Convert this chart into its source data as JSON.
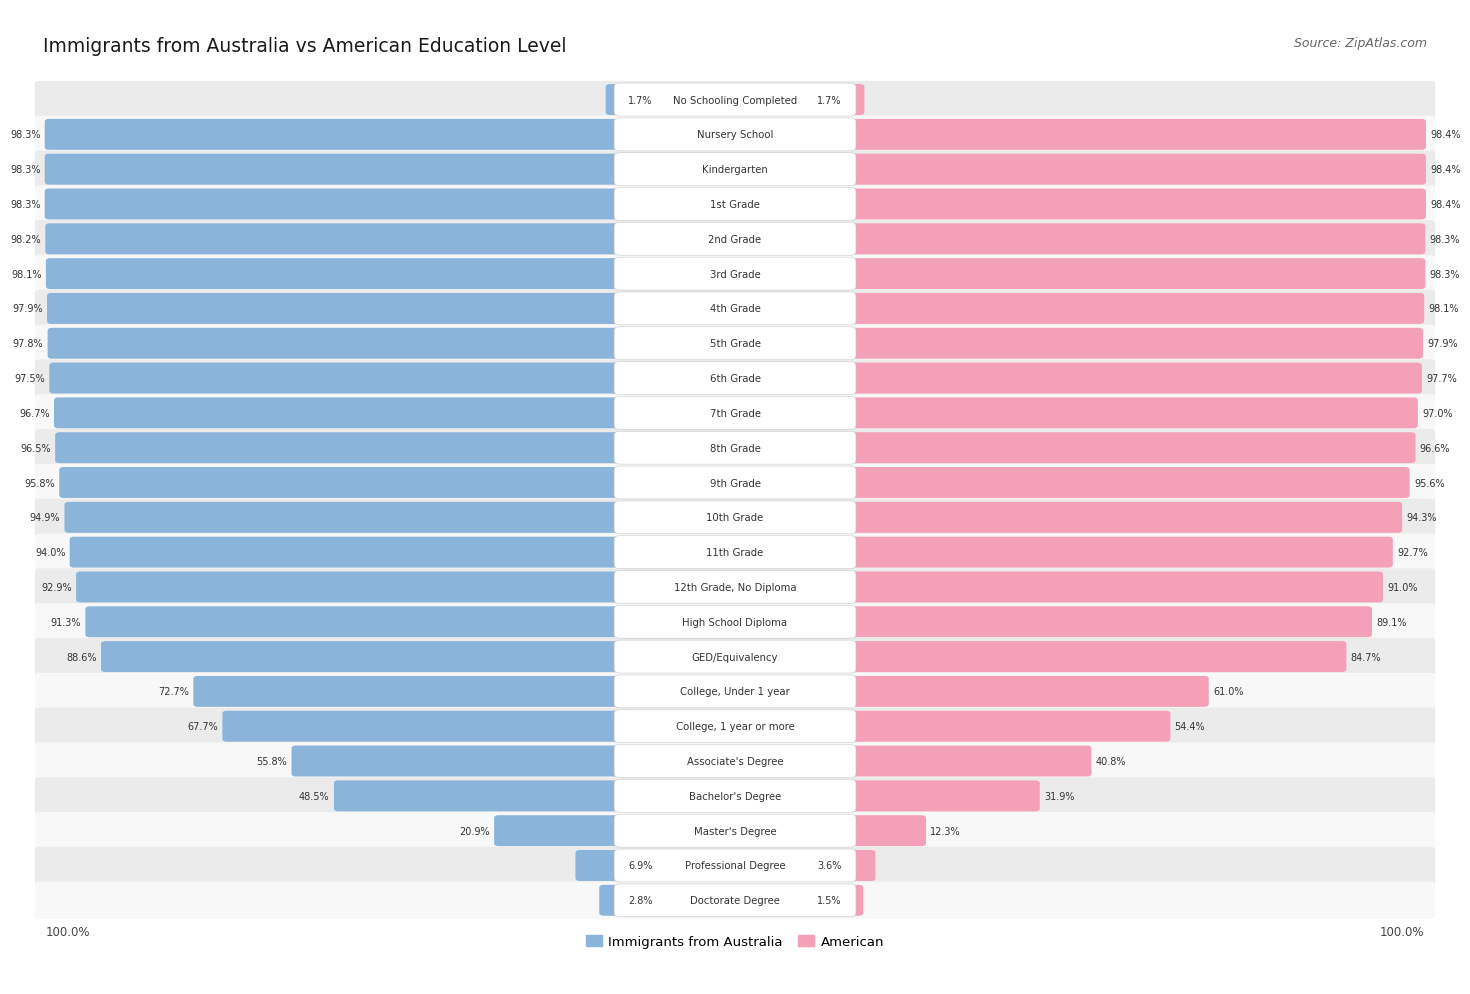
{
  "title": "Immigrants from Australia vs American Education Level",
  "source": "Source: ZipAtlas.com",
  "categories": [
    "No Schooling Completed",
    "Nursery School",
    "Kindergarten",
    "1st Grade",
    "2nd Grade",
    "3rd Grade",
    "4th Grade",
    "5th Grade",
    "6th Grade",
    "7th Grade",
    "8th Grade",
    "9th Grade",
    "10th Grade",
    "11th Grade",
    "12th Grade, No Diploma",
    "High School Diploma",
    "GED/Equivalency",
    "College, Under 1 year",
    "College, 1 year or more",
    "Associate's Degree",
    "Bachelor's Degree",
    "Master's Degree",
    "Professional Degree",
    "Doctorate Degree"
  ],
  "australia_values": [
    1.7,
    98.3,
    98.3,
    98.3,
    98.2,
    98.1,
    97.9,
    97.8,
    97.5,
    96.7,
    96.5,
    95.8,
    94.9,
    94.0,
    92.9,
    91.3,
    88.6,
    72.7,
    67.7,
    55.8,
    48.5,
    20.9,
    6.9,
    2.8
  ],
  "american_values": [
    1.7,
    98.4,
    98.4,
    98.4,
    98.3,
    98.3,
    98.1,
    97.9,
    97.7,
    97.0,
    96.6,
    95.6,
    94.3,
    92.7,
    91.0,
    89.1,
    84.7,
    61.0,
    54.4,
    40.8,
    31.9,
    12.3,
    3.6,
    1.5
  ],
  "australia_color": "#8ab4d9",
  "american_color": "#f4a0b8",
  "row_even_color": "#ebebeb",
  "row_odd_color": "#f8f8f8",
  "label_box_color": "#ffffff",
  "fig_width": 14.06,
  "fig_height": 9.75
}
